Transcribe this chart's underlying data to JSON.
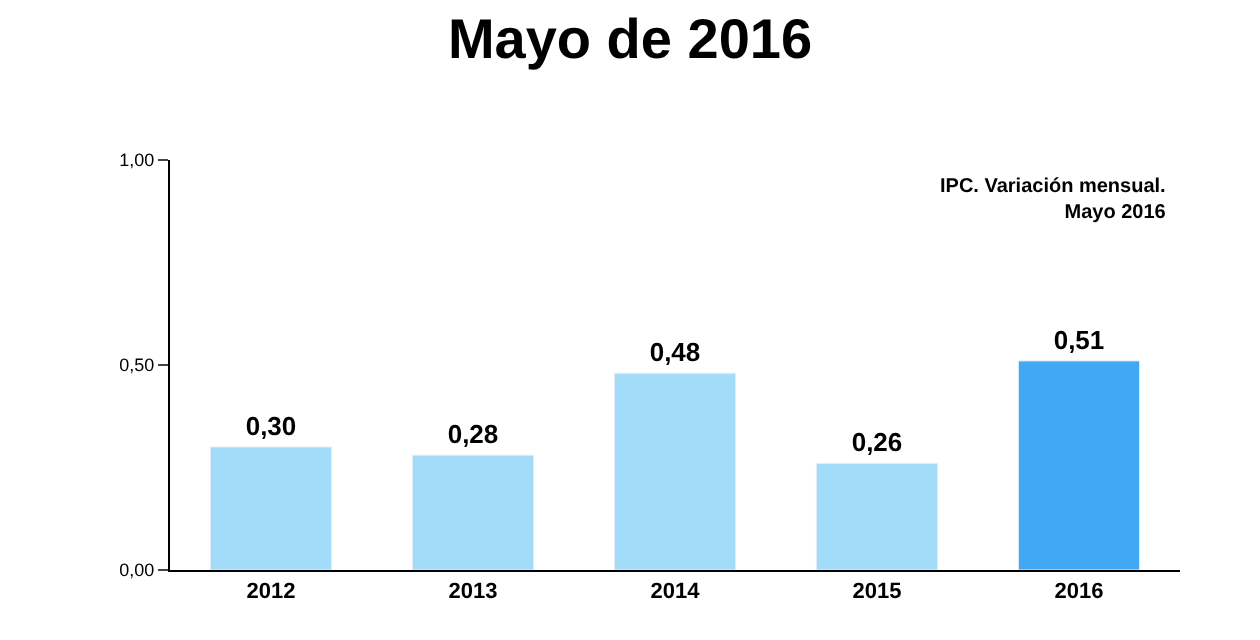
{
  "chart_data": {
    "type": "bar",
    "title": "Mayo de 2016",
    "categories": [
      "2012",
      "2013",
      "2014",
      "2015",
      "2016"
    ],
    "values": [
      0.3,
      0.28,
      0.48,
      0.26,
      0.51
    ],
    "colors": [
      "#a3dcf9",
      "#a3dcf9",
      "#a3dcf9",
      "#a3dcf9",
      "#41a9f4"
    ],
    "value_labels": [
      "0,30",
      "0,28",
      "0,48",
      "0,26",
      "0,51"
    ],
    "ylim": [
      0,
      1
    ],
    "yticks": [
      {
        "value": 0,
        "label": "0,00"
      },
      {
        "value": 0.5,
        "label": "0,50"
      },
      {
        "value": 1,
        "label": "1,00"
      }
    ],
    "legend": false,
    "annotations": [
      "IPC. Variación mensual.\nMayo 2016"
    ]
  }
}
